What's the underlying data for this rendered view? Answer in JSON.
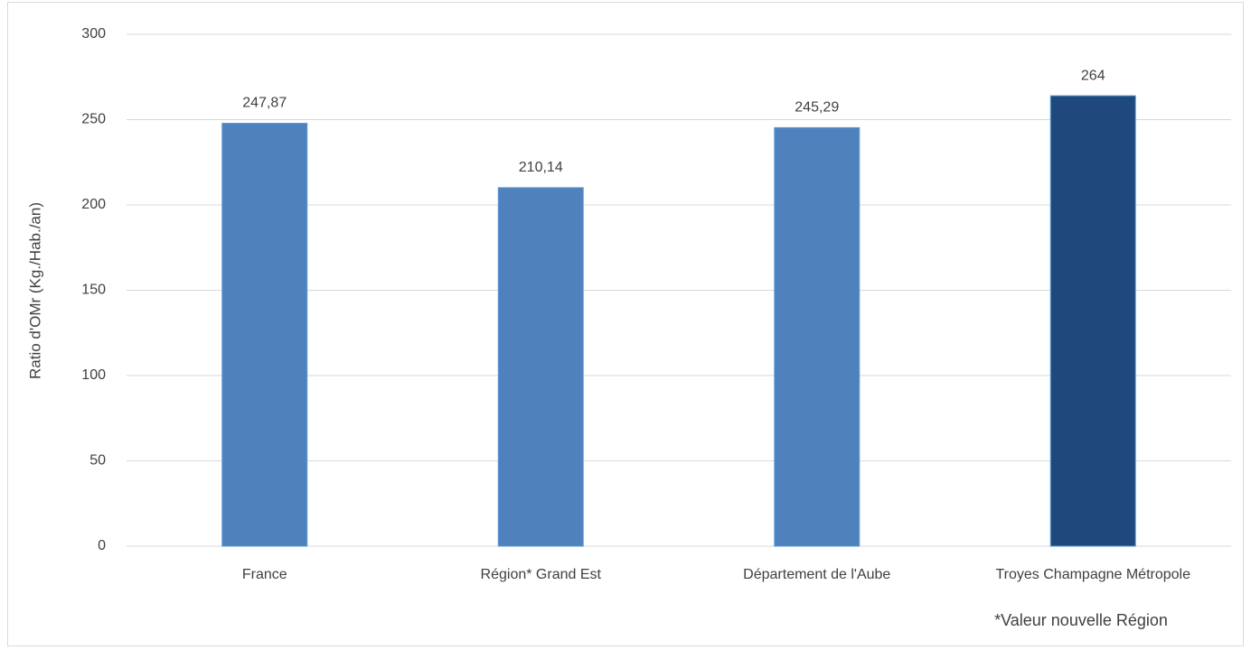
{
  "chart_data": {
    "type": "bar",
    "y_label": "Ratio d'OMr (Kg./Hab./an)",
    "categories": [
      "France",
      "Région* Grand Est",
      "Département de l'Aube",
      "Troyes Champagne Métropole"
    ],
    "values": [
      247.87,
      210.14,
      245.29,
      264
    ],
    "value_labels": [
      "247,87",
      "210,14",
      "245,29",
      "264"
    ],
    "colors": [
      "#4f81bd",
      "#4f81bd",
      "#4f81bd",
      "#1f497d"
    ],
    "ylim": [
      0,
      300
    ],
    "yticks": [
      0,
      50,
      100,
      150,
      200,
      250,
      300
    ],
    "grid": true,
    "annotation": "*Valeur nouvelle Région"
  }
}
